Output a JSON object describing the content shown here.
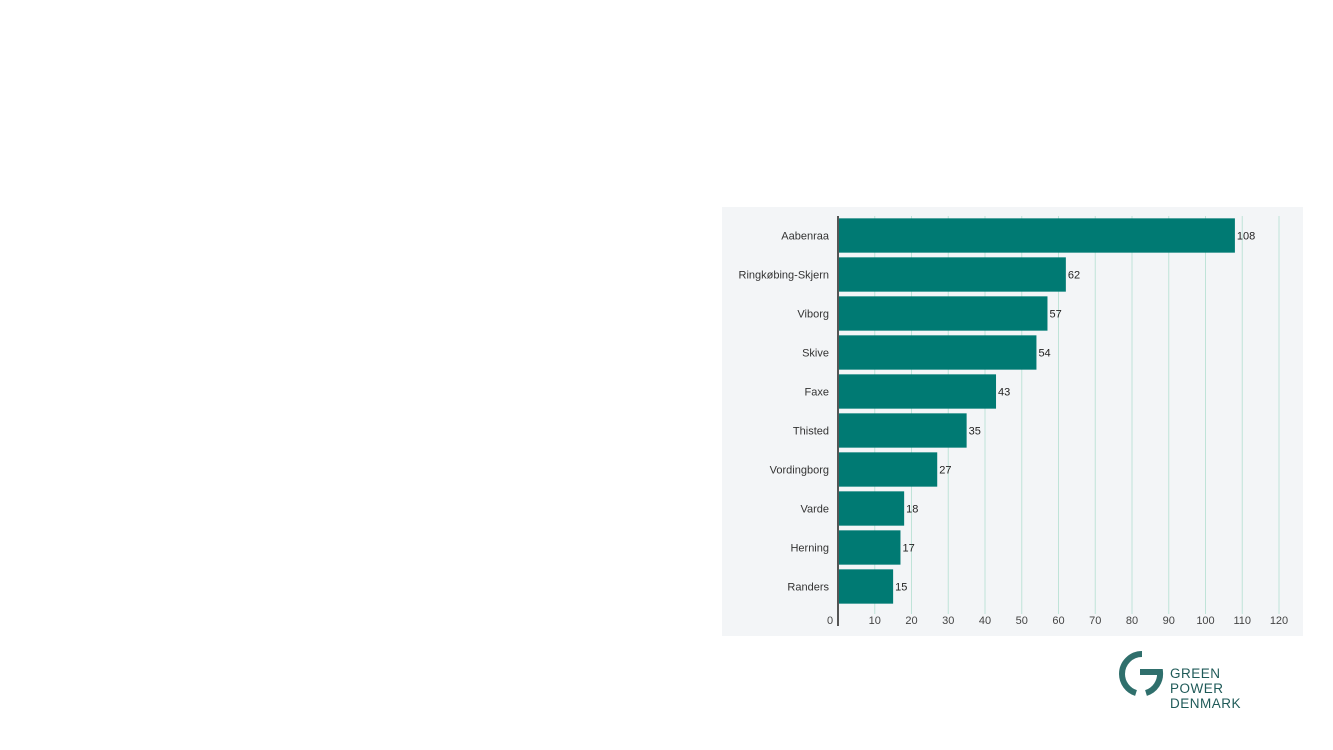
{
  "chart_data": {
    "type": "bar",
    "orientation": "horizontal",
    "categories": [
      "Aabenraa",
      "Ringkøbing-Skjern",
      "Viborg",
      "Skive",
      "Faxe",
      "Thisted",
      "Vordingborg",
      "Varde",
      "Herning",
      "Randers"
    ],
    "values": [
      108,
      62,
      57,
      54,
      43,
      35,
      27,
      18,
      17,
      15
    ],
    "xlim": [
      0,
      120
    ],
    "xticks": [
      0,
      10,
      20,
      30,
      40,
      50,
      60,
      70,
      80,
      90,
      100,
      110,
      120
    ],
    "grid": true,
    "bar_color": "#007a73",
    "grid_color": "#bfe3d8",
    "background": "#f3f5f7",
    "data_labels": true
  },
  "logo": {
    "line1": "GREEN",
    "line2": "POWER",
    "line3": "DENMARK",
    "color": "#1f5a58"
  }
}
